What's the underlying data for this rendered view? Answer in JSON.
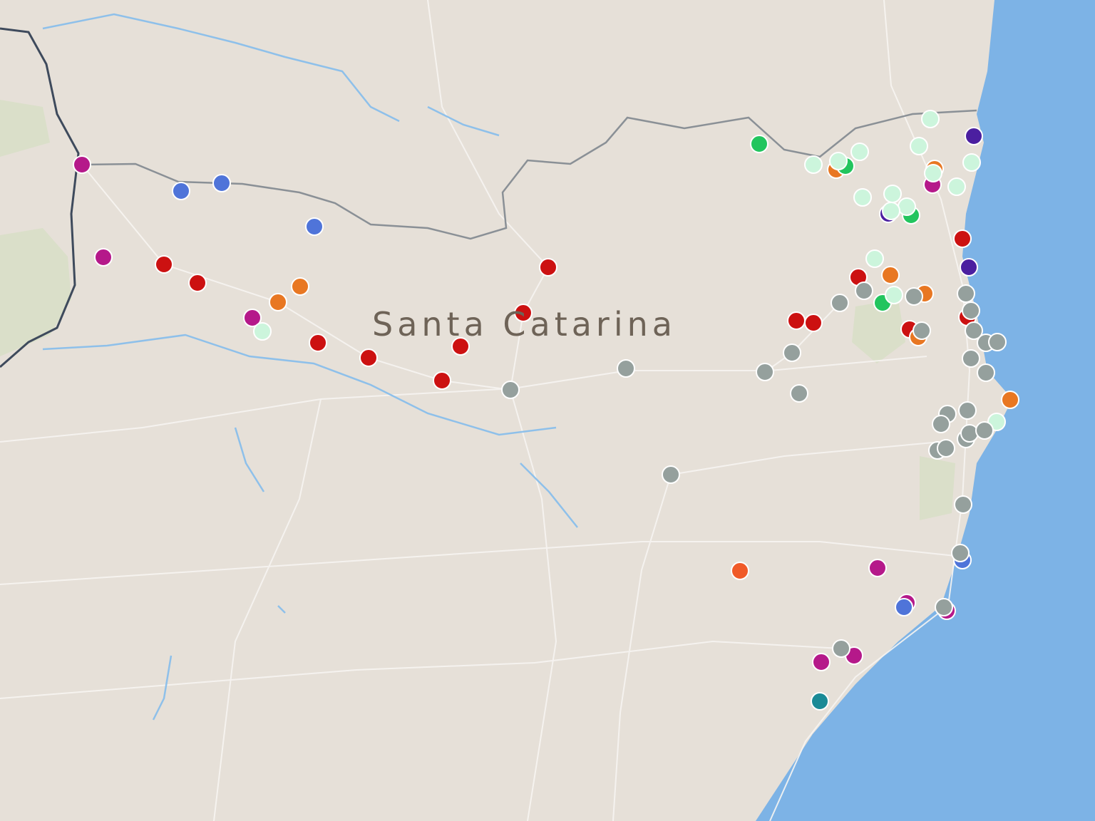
{
  "map": {
    "region_label": "Santa Catarina",
    "colors": {
      "land": "#e6e0d8",
      "ocean": "#7db3e6",
      "water": "#8ec0ea",
      "road": "#f7f5f2",
      "border": "#8a9096",
      "country_border": "#3e4a5c",
      "green_area": "#d7dfc6"
    },
    "marker_colors": {
      "red": "#cc1111",
      "gray": "#95a09d",
      "mint": "#ccf5dc",
      "green": "#22c55e",
      "orange": "#e87722",
      "magenta": "#b5198a",
      "blue": "#4f74d9",
      "purple": "#4b1fa0",
      "teal": "#1a8a96",
      "orangered": "#f05a28"
    }
  }
}
